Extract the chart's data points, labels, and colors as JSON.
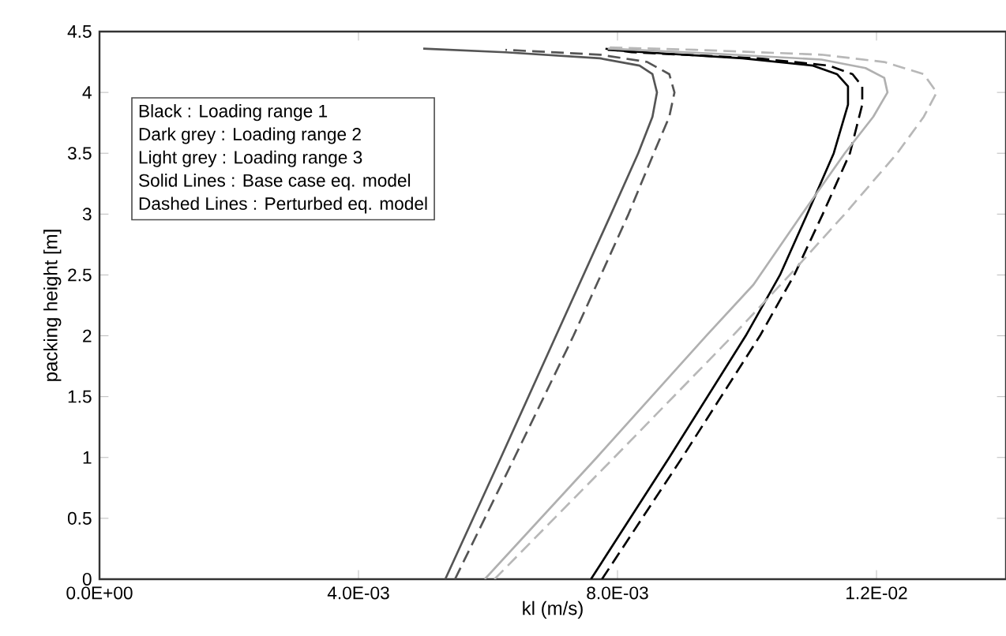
{
  "chart_data": {
    "type": "line",
    "xlabel": "kl (m/s)",
    "ylabel": "packing height [m]",
    "xlim": [
      0,
      0.014
    ],
    "ylim": [
      0,
      4.5
    ],
    "xticks": [
      {
        "value": 0,
        "label": "0.0E+00"
      },
      {
        "value": 0.004,
        "label": "4.0E-03"
      },
      {
        "value": 0.008,
        "label": "8.0E-03"
      },
      {
        "value": 0.012,
        "label": "1.2E-02"
      }
    ],
    "yticks": [
      0,
      0.5,
      1,
      1.5,
      2,
      2.5,
      3,
      3.5,
      4,
      4.5
    ],
    "marker": "none",
    "annotations": [
      "Black        : Loading range 1",
      "Dark grey  : Loading range 2",
      "Light grey  : Loading range 3",
      "Solid Lines      : Base case eq. model",
      "Dashed Lines : Perturbed eq. model"
    ],
    "series": [
      {
        "color": "#555555",
        "line_style": "solid",
        "x": [
          0.00534,
          0.0062,
          0.00705,
          0.0079,
          0.00832,
          0.00854,
          0.00861,
          0.00854,
          0.00834,
          0.00773,
          0.00627,
          0.005
        ],
        "values": [
          0,
          1,
          2,
          3,
          3.5,
          3.8,
          4.0,
          4.15,
          4.22,
          4.28,
          4.33,
          4.36
        ]
      },
      {
        "color": "#555555",
        "line_style": "dashed",
        "x": [
          0.00549,
          0.00641,
          0.00732,
          0.00817,
          0.00856,
          0.0088,
          0.00888,
          0.0088,
          0.00846,
          0.00773,
          0.00627
        ],
        "values": [
          0,
          1,
          2,
          3,
          3.5,
          3.8,
          4.0,
          4.15,
          4.25,
          4.31,
          4.35
        ]
      },
      {
        "color": "#000000",
        "line_style": "solid",
        "x": [
          0.00759,
          0.0088,
          0.00998,
          0.01051,
          0.01093,
          0.01134,
          0.01156,
          0.01156,
          0.01139,
          0.01102,
          0.00993,
          0.00871,
          0.00785
        ],
        "values": [
          0,
          1,
          2,
          2.5,
          3,
          3.5,
          3.9,
          4.05,
          4.15,
          4.22,
          4.28,
          4.32,
          4.35
        ]
      },
      {
        "color": "#000000",
        "line_style": "dashed",
        "x": [
          0.00776,
          0.009,
          0.0102,
          0.01073,
          0.01117,
          0.01159,
          0.01178,
          0.01178,
          0.01163,
          0.01127,
          0.01017,
          0.00822,
          0.0078
        ],
        "values": [
          0,
          1,
          2,
          2.5,
          3,
          3.5,
          3.9,
          4.05,
          4.15,
          4.22,
          4.28,
          4.33,
          4.36
        ]
      },
      {
        "color": "#b0b0b0",
        "line_style": "solid",
        "x": [
          0.00595,
          0.00768,
          0.00937,
          0.0101,
          0.01085,
          0.01151,
          0.01195,
          0.01217,
          0.01212,
          0.01183,
          0.01115,
          0.00944,
          0.00785
        ],
        "values": [
          0,
          1,
          2,
          2.42,
          3,
          3.5,
          3.8,
          4.0,
          4.12,
          4.2,
          4.27,
          4.32,
          4.36
        ]
      },
      {
        "color": "#b8b8b8",
        "line_style": "dashed",
        "x": [
          0.0061,
          0.00795,
          0.00978,
          0.01066,
          0.01151,
          0.01232,
          0.01273,
          0.01293,
          0.01273,
          0.01212,
          0.01115,
          0.0092,
          0.00785
        ],
        "values": [
          0,
          1,
          2,
          2.5,
          3,
          3.5,
          3.8,
          4.0,
          4.15,
          4.25,
          4.31,
          4.35,
          4.37
        ]
      }
    ]
  }
}
